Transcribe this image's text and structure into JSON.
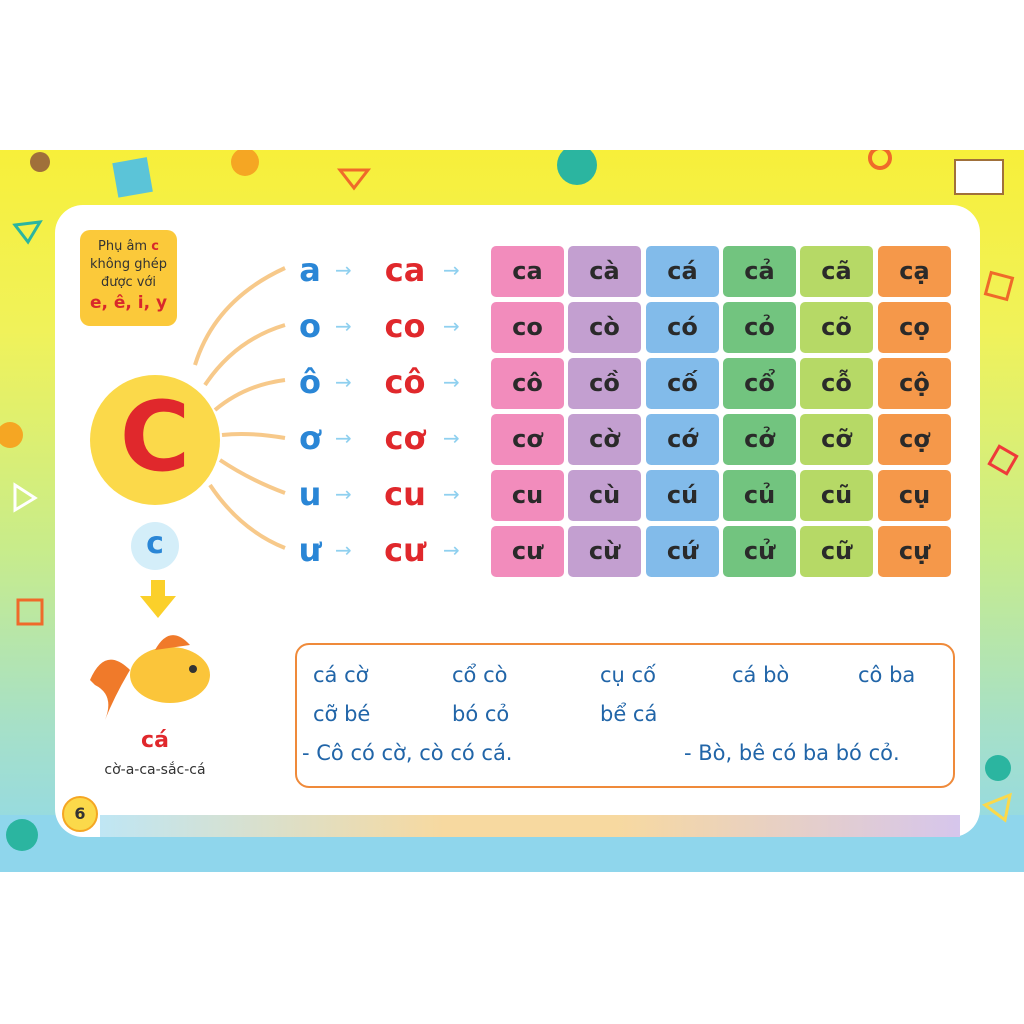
{
  "note": {
    "line1": "Phụ âm",
    "letter": "c",
    "line2": "không ghép",
    "line3": "được với",
    "vowels": "e, ê, i, y"
  },
  "main_letter": "C",
  "small_letter": "c",
  "example": {
    "word": "cá",
    "spelling": "cờ-a-ca-sắc-cá"
  },
  "page_number": "6",
  "rows": [
    {
      "vowel": "a",
      "syllable": "ca",
      "tones": [
        "ca",
        "cà",
        "cá",
        "cả",
        "cã",
        "cạ"
      ]
    },
    {
      "vowel": "o",
      "syllable": "co",
      "tones": [
        "co",
        "cò",
        "có",
        "cỏ",
        "cõ",
        "cọ"
      ]
    },
    {
      "vowel": "ô",
      "syllable": "cô",
      "tones": [
        "cô",
        "cồ",
        "cố",
        "cổ",
        "cỗ",
        "cộ"
      ]
    },
    {
      "vowel": "ơ",
      "syllable": "cơ",
      "tones": [
        "cơ",
        "cờ",
        "cớ",
        "cở",
        "cỡ",
        "cợ"
      ]
    },
    {
      "vowel": "u",
      "syllable": "cu",
      "tones": [
        "cu",
        "cù",
        "cú",
        "củ",
        "cũ",
        "cụ"
      ]
    },
    {
      "vowel": "ư",
      "syllable": "cư",
      "tones": [
        "cư",
        "cừ",
        "cứ",
        "cử",
        "cữ",
        "cự"
      ]
    }
  ],
  "column_colors": [
    "#f28cbc",
    "#c39fd0",
    "#82bbea",
    "#72c47f",
    "#b6d966",
    "#f5984a"
  ],
  "reading": {
    "words": [
      "cá cờ",
      "cổ cò",
      "cụ cố",
      "cá bò",
      "cô ba",
      "cỡ bé",
      "bó cỏ",
      "bể cá"
    ],
    "sentences": [
      "- Cô có cờ, cò có cá.",
      "- Bò, bê có ba bó cỏ."
    ]
  }
}
